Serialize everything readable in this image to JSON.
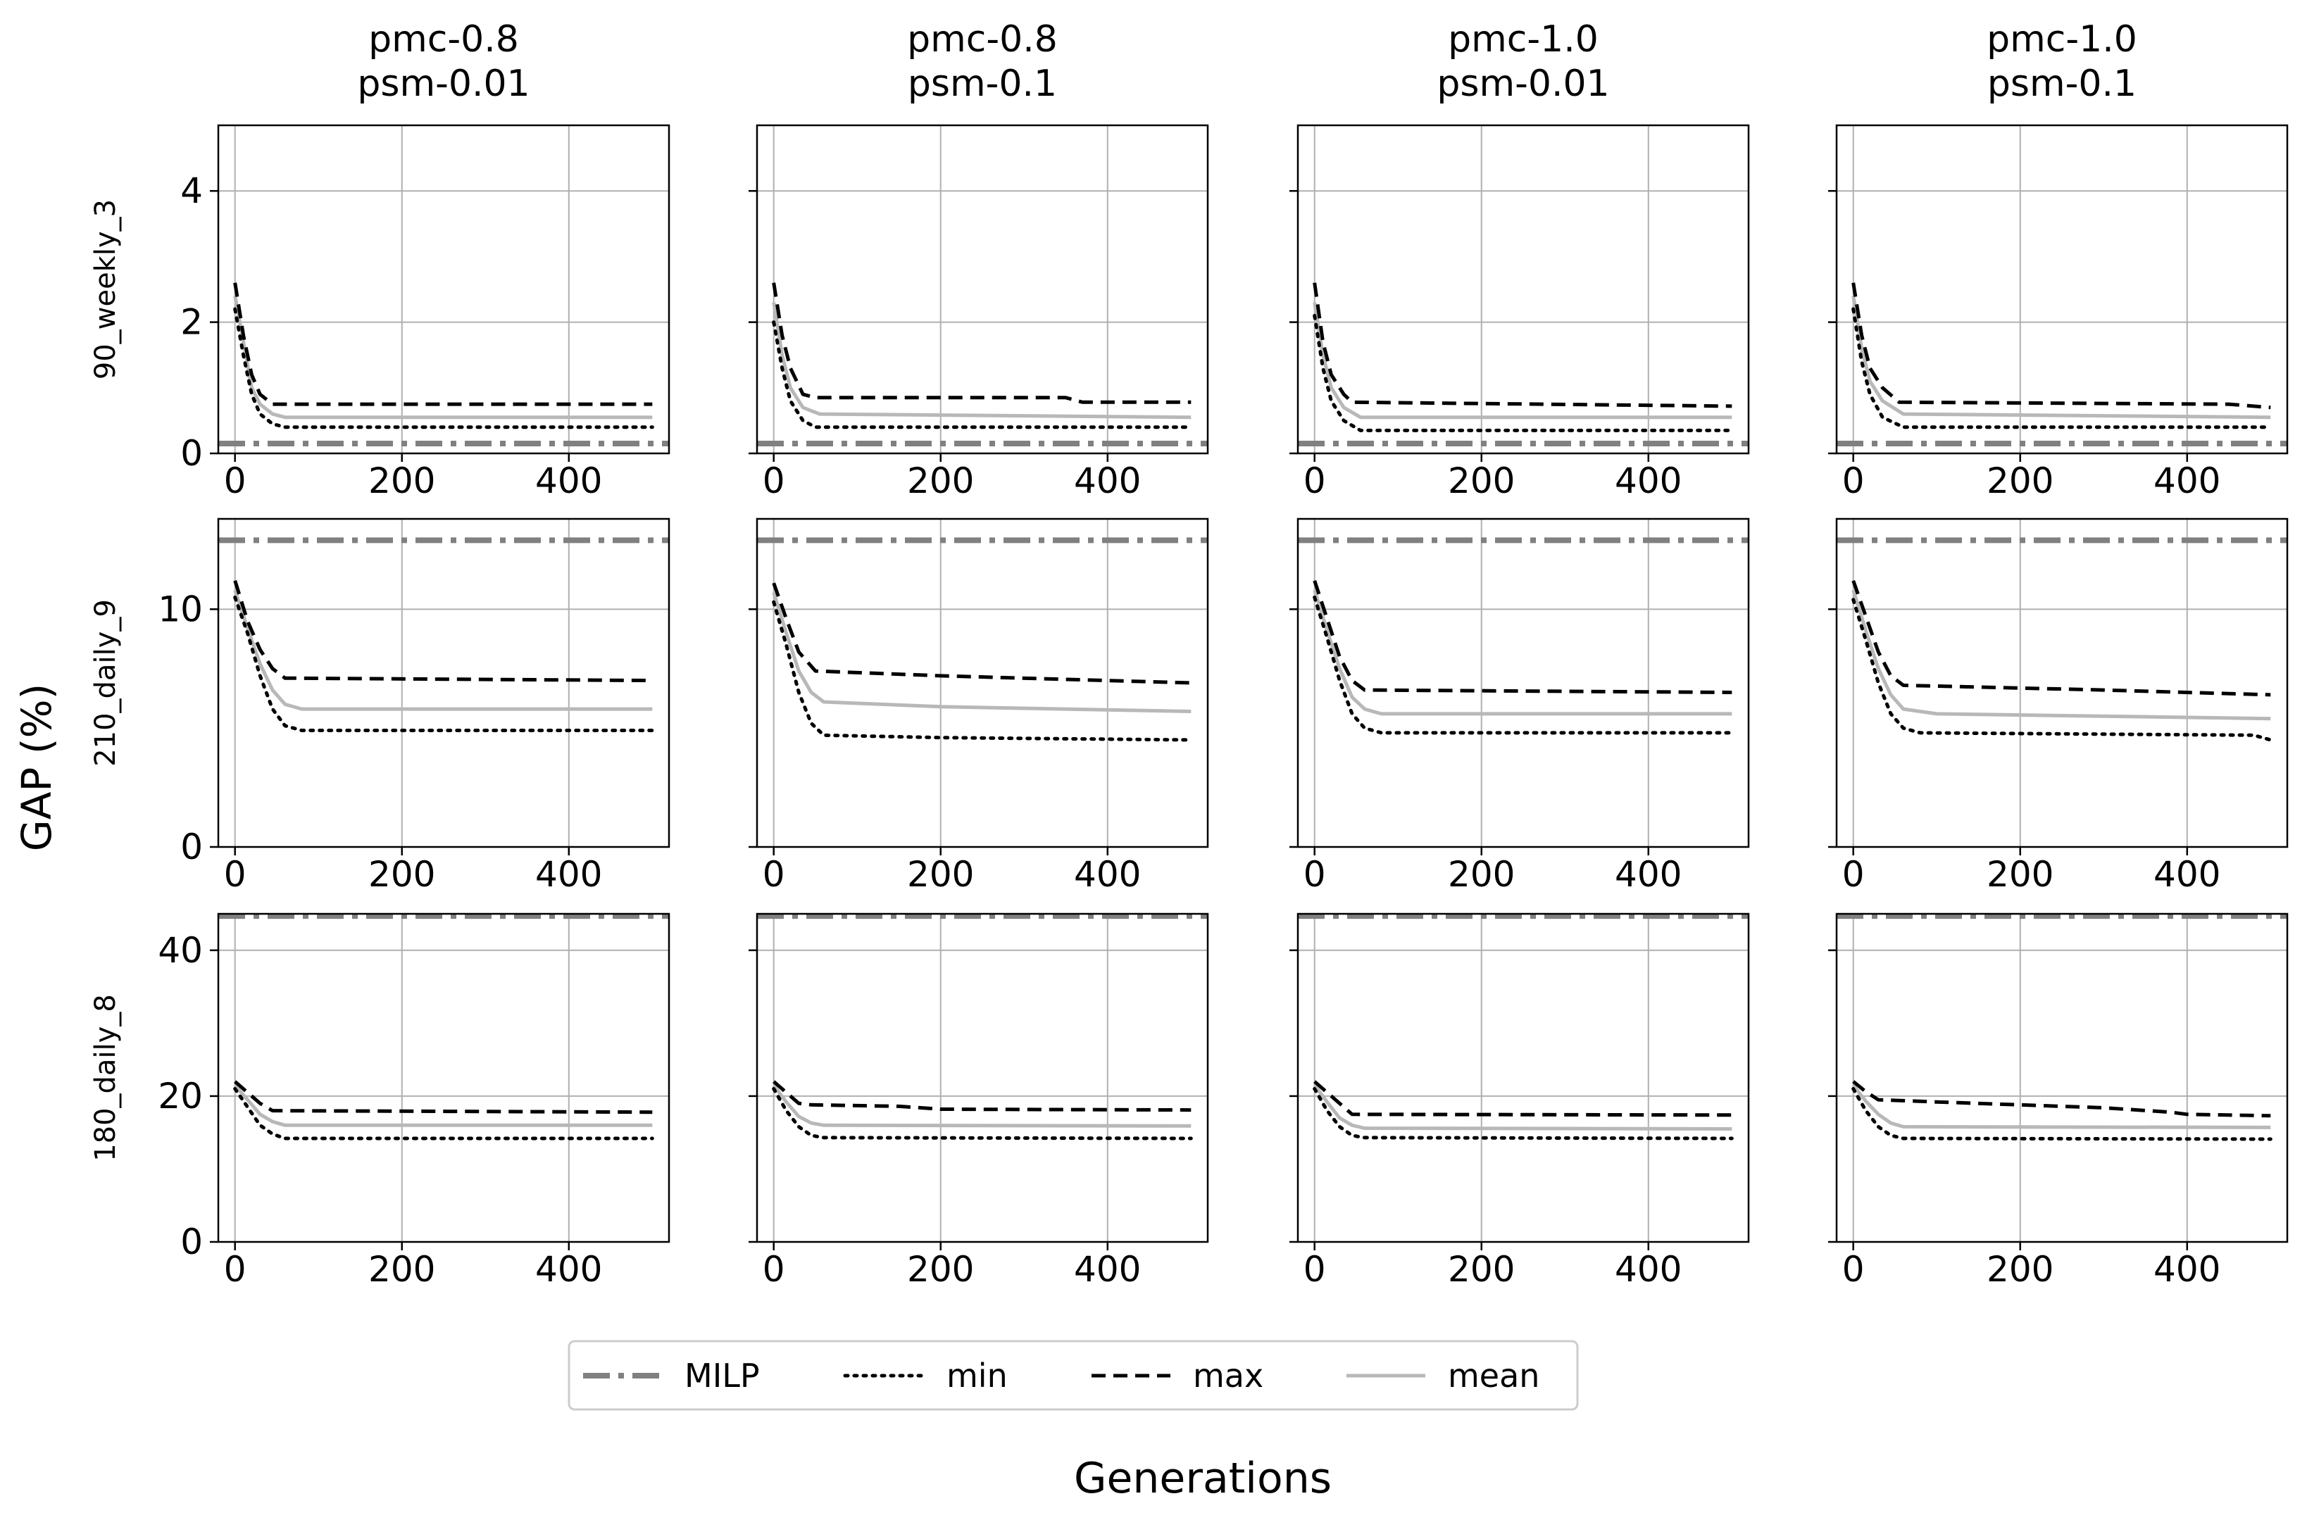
{
  "figure": {
    "ylabel": "GAP (%)",
    "xlabel": "Generations"
  },
  "legend": {
    "placement": "bottom-center",
    "entries": [
      {
        "label": "MILP",
        "style": "dashdot",
        "color": "#808080"
      },
      {
        "label": "min",
        "style": "dotted",
        "color": "#000000"
      },
      {
        "label": "max",
        "style": "dashed",
        "color": "#000000"
      },
      {
        "label": "mean",
        "style": "solid",
        "color": "#b8b8b8"
      }
    ]
  },
  "chart_data": {
    "type": "line",
    "columns": [
      {
        "line1": "pmc-0.8",
        "line2": "psm-0.01"
      },
      {
        "line1": "pmc-0.8",
        "line2": "psm-0.1"
      },
      {
        "line1": "pmc-1.0",
        "line2": "psm-0.01"
      },
      {
        "line1": "pmc-1.0",
        "line2": "psm-0.1"
      }
    ],
    "rows": [
      {
        "label": "90_weekly_3",
        "ylim": [
          0,
          5
        ],
        "yticks": [
          0,
          2,
          4
        ]
      },
      {
        "label": "210_daily_9",
        "ylim": [
          0,
          13.8
        ],
        "yticks": [
          0,
          10
        ]
      },
      {
        "label": "180_daily_8",
        "ylim": [
          0,
          45
        ],
        "yticks": [
          0,
          20,
          40
        ]
      }
    ],
    "xlim": [
      -20,
      520
    ],
    "xticks": [
      0,
      200,
      400
    ],
    "grid": true,
    "panels": [
      [
        {
          "milp": 0.15,
          "min": [
            [
              0,
              2.2
            ],
            [
              10,
              1.5
            ],
            [
              20,
              0.9
            ],
            [
              30,
              0.6
            ],
            [
              45,
              0.45
            ],
            [
              60,
              0.4
            ],
            [
              500,
              0.4
            ]
          ],
          "max": [
            [
              0,
              2.6
            ],
            [
              10,
              1.8
            ],
            [
              20,
              1.2
            ],
            [
              30,
              0.9
            ],
            [
              45,
              0.75
            ],
            [
              500,
              0.75
            ]
          ],
          "mean": [
            [
              0,
              2.4
            ],
            [
              10,
              1.7
            ],
            [
              20,
              1.0
            ],
            [
              30,
              0.75
            ],
            [
              45,
              0.6
            ],
            [
              60,
              0.55
            ],
            [
              500,
              0.55
            ]
          ]
        },
        {
          "milp": 0.15,
          "min": [
            [
              0,
              2.0
            ],
            [
              10,
              1.3
            ],
            [
              20,
              0.8
            ],
            [
              35,
              0.5
            ],
            [
              50,
              0.4
            ],
            [
              500,
              0.4
            ]
          ],
          "max": [
            [
              0,
              2.6
            ],
            [
              10,
              1.8
            ],
            [
              20,
              1.3
            ],
            [
              35,
              0.9
            ],
            [
              50,
              0.85
            ],
            [
              350,
              0.85
            ],
            [
              370,
              0.78
            ],
            [
              500,
              0.78
            ]
          ],
          "mean": [
            [
              0,
              2.3
            ],
            [
              10,
              1.5
            ],
            [
              20,
              1.0
            ],
            [
              35,
              0.7
            ],
            [
              55,
              0.6
            ],
            [
              500,
              0.55
            ]
          ]
        },
        {
          "milp": 0.15,
          "min": [
            [
              0,
              2.1
            ],
            [
              10,
              1.3
            ],
            [
              20,
              0.8
            ],
            [
              35,
              0.5
            ],
            [
              55,
              0.35
            ],
            [
              500,
              0.35
            ]
          ],
          "max": [
            [
              0,
              2.6
            ],
            [
              10,
              1.7
            ],
            [
              20,
              1.2
            ],
            [
              35,
              0.9
            ],
            [
              45,
              0.78
            ],
            [
              500,
              0.72
            ]
          ],
          "mean": [
            [
              0,
              2.3
            ],
            [
              10,
              1.5
            ],
            [
              20,
              1.0
            ],
            [
              35,
              0.7
            ],
            [
              55,
              0.55
            ],
            [
              500,
              0.55
            ]
          ]
        },
        {
          "milp": 0.15,
          "min": [
            [
              0,
              2.2
            ],
            [
              10,
              1.4
            ],
            [
              20,
              0.9
            ],
            [
              35,
              0.55
            ],
            [
              60,
              0.4
            ],
            [
              500,
              0.4
            ]
          ],
          "max": [
            [
              0,
              2.6
            ],
            [
              10,
              1.8
            ],
            [
              20,
              1.3
            ],
            [
              35,
              1.0
            ],
            [
              55,
              0.78
            ],
            [
              450,
              0.75
            ],
            [
              500,
              0.7
            ]
          ],
          "mean": [
            [
              0,
              2.4
            ],
            [
              10,
              1.6
            ],
            [
              20,
              1.1
            ],
            [
              35,
              0.8
            ],
            [
              60,
              0.6
            ],
            [
              500,
              0.55
            ]
          ]
        }
      ],
      [
        {
          "milp": 12.9,
          "min": [
            [
              0,
              10.5
            ],
            [
              15,
              9.0
            ],
            [
              30,
              7.2
            ],
            [
              45,
              5.8
            ],
            [
              60,
              5.1
            ],
            [
              80,
              4.9
            ],
            [
              500,
              4.9
            ]
          ],
          "max": [
            [
              0,
              11.2
            ],
            [
              15,
              9.5
            ],
            [
              30,
              8.3
            ],
            [
              45,
              7.5
            ],
            [
              60,
              7.1
            ],
            [
              500,
              7.0
            ]
          ],
          "mean": [
            [
              0,
              10.8
            ],
            [
              15,
              9.2
            ],
            [
              30,
              7.7
            ],
            [
              45,
              6.6
            ],
            [
              60,
              6.0
            ],
            [
              80,
              5.8
            ],
            [
              500,
              5.8
            ]
          ]
        },
        {
          "milp": 12.9,
          "min": [
            [
              0,
              10.3
            ],
            [
              15,
              8.5
            ],
            [
              30,
              6.5
            ],
            [
              45,
              5.2
            ],
            [
              60,
              4.7
            ],
            [
              200,
              4.6
            ],
            [
              500,
              4.5
            ]
          ],
          "max": [
            [
              0,
              11.1
            ],
            [
              15,
              9.6
            ],
            [
              30,
              8.2
            ],
            [
              50,
              7.4
            ],
            [
              200,
              7.2
            ],
            [
              500,
              6.9
            ]
          ],
          "mean": [
            [
              0,
              10.7
            ],
            [
              15,
              9.0
            ],
            [
              30,
              7.4
            ],
            [
              45,
              6.5
            ],
            [
              60,
              6.1
            ],
            [
              200,
              5.9
            ],
            [
              500,
              5.7
            ]
          ]
        },
        {
          "milp": 12.9,
          "min": [
            [
              0,
              10.5
            ],
            [
              15,
              8.8
            ],
            [
              30,
              7.0
            ],
            [
              45,
              5.6
            ],
            [
              60,
              5.0
            ],
            [
              80,
              4.8
            ],
            [
              500,
              4.8
            ]
          ],
          "max": [
            [
              0,
              11.2
            ],
            [
              15,
              9.6
            ],
            [
              30,
              8.0
            ],
            [
              45,
              7.0
            ],
            [
              60,
              6.6
            ],
            [
              500,
              6.5
            ]
          ],
          "mean": [
            [
              0,
              10.8
            ],
            [
              15,
              9.1
            ],
            [
              30,
              7.5
            ],
            [
              45,
              6.3
            ],
            [
              60,
              5.8
            ],
            [
              80,
              5.6
            ],
            [
              500,
              5.6
            ]
          ]
        },
        {
          "milp": 12.9,
          "min": [
            [
              0,
              10.4
            ],
            [
              15,
              8.7
            ],
            [
              30,
              6.9
            ],
            [
              45,
              5.6
            ],
            [
              60,
              5.0
            ],
            [
              80,
              4.8
            ],
            [
              480,
              4.7
            ],
            [
              500,
              4.5
            ]
          ],
          "max": [
            [
              0,
              11.2
            ],
            [
              15,
              9.7
            ],
            [
              30,
              8.2
            ],
            [
              45,
              7.2
            ],
            [
              60,
              6.8
            ],
            [
              300,
              6.6
            ],
            [
              500,
              6.4
            ]
          ],
          "mean": [
            [
              0,
              10.8
            ],
            [
              15,
              9.1
            ],
            [
              30,
              7.5
            ],
            [
              45,
              6.4
            ],
            [
              60,
              5.8
            ],
            [
              100,
              5.6
            ],
            [
              500,
              5.4
            ]
          ]
        }
      ],
      [
        {
          "milp": 44.7,
          "min": [
            [
              0,
              21.0
            ],
            [
              15,
              18.5
            ],
            [
              30,
              16.0
            ],
            [
              45,
              14.8
            ],
            [
              60,
              14.2
            ],
            [
              500,
              14.2
            ]
          ],
          "max": [
            [
              0,
              22.0
            ],
            [
              15,
              20.5
            ],
            [
              30,
              19.0
            ],
            [
              45,
              18.0
            ],
            [
              500,
              17.8
            ]
          ],
          "mean": [
            [
              0,
              21.5
            ],
            [
              15,
              19.5
            ],
            [
              30,
              17.5
            ],
            [
              45,
              16.5
            ],
            [
              60,
              16.0
            ],
            [
              500,
              16.0
            ]
          ]
        },
        {
          "milp": 44.7,
          "min": [
            [
              0,
              21.0
            ],
            [
              15,
              18.0
            ],
            [
              30,
              15.8
            ],
            [
              45,
              14.6
            ],
            [
              60,
              14.3
            ],
            [
              500,
              14.2
            ]
          ],
          "max": [
            [
              0,
              22.0
            ],
            [
              15,
              20.5
            ],
            [
              30,
              19.0
            ],
            [
              45,
              18.8
            ],
            [
              150,
              18.6
            ],
            [
              200,
              18.2
            ],
            [
              500,
              18.1
            ]
          ],
          "mean": [
            [
              0,
              21.5
            ],
            [
              15,
              19.2
            ],
            [
              30,
              17.2
            ],
            [
              45,
              16.3
            ],
            [
              60,
              16.0
            ],
            [
              500,
              15.9
            ]
          ]
        },
        {
          "milp": 44.7,
          "min": [
            [
              0,
              21.0
            ],
            [
              15,
              18.0
            ],
            [
              30,
              15.8
            ],
            [
              45,
              14.6
            ],
            [
              60,
              14.3
            ],
            [
              500,
              14.2
            ]
          ],
          "max": [
            [
              0,
              22.0
            ],
            [
              15,
              20.5
            ],
            [
              30,
              19.0
            ],
            [
              45,
              17.5
            ],
            [
              500,
              17.4
            ]
          ],
          "mean": [
            [
              0,
              21.5
            ],
            [
              15,
              19.2
            ],
            [
              30,
              17.0
            ],
            [
              45,
              16.0
            ],
            [
              60,
              15.6
            ],
            [
              500,
              15.5
            ]
          ]
        },
        {
          "milp": 44.7,
          "min": [
            [
              0,
              21.0
            ],
            [
              15,
              18.0
            ],
            [
              30,
              15.8
            ],
            [
              45,
              14.6
            ],
            [
              60,
              14.2
            ],
            [
              500,
              14.1
            ]
          ],
          "max": [
            [
              0,
              22.0
            ],
            [
              15,
              20.6
            ],
            [
              30,
              19.5
            ],
            [
              100,
              19.2
            ],
            [
              300,
              18.4
            ],
            [
              380,
              17.8
            ],
            [
              400,
              17.5
            ],
            [
              500,
              17.3
            ]
          ],
          "mean": [
            [
              0,
              21.5
            ],
            [
              15,
              19.3
            ],
            [
              30,
              17.5
            ],
            [
              45,
              16.3
            ],
            [
              60,
              15.8
            ],
            [
              500,
              15.7
            ]
          ]
        }
      ]
    ]
  }
}
